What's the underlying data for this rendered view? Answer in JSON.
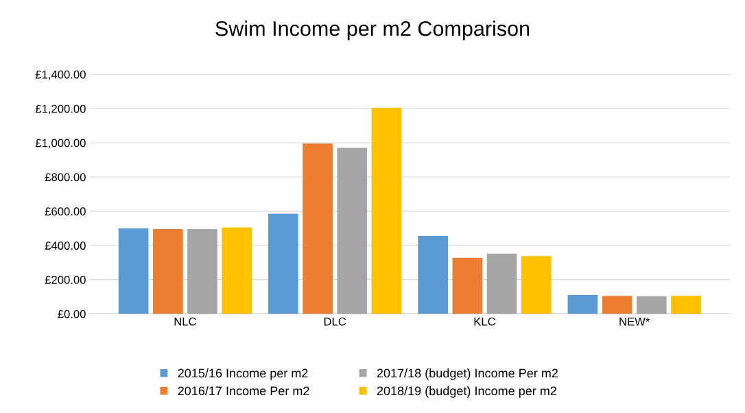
{
  "chart_data": {
    "type": "bar",
    "title": "Swim Income per m2 Comparison",
    "categories": [
      "NLC",
      "DLC",
      "KLC",
      "NEW*"
    ],
    "series": [
      {
        "name": "2015/16 Income per m2",
        "color": "#5b9bd5",
        "values": [
          500,
          585,
          455,
          110
        ]
      },
      {
        "name": "2016/17 Income Per m2",
        "color": "#ed7d31",
        "values": [
          495,
          995,
          328,
          105
        ]
      },
      {
        "name": "2017/18 (budget) Income Per m2",
        "color": "#a5a5a5",
        "values": [
          495,
          970,
          352,
          103
        ]
      },
      {
        "name": "2018/19 (budget) Income per m2",
        "color": "#ffc000",
        "values": [
          505,
          1205,
          338,
          105
        ]
      }
    ],
    "ylim": [
      0,
      1400
    ],
    "yticks": [
      {
        "value": 0,
        "label": "£0.00"
      },
      {
        "value": 200,
        "label": "£200.00"
      },
      {
        "value": 400,
        "label": "£400.00"
      },
      {
        "value": 600,
        "label": "£600.00"
      },
      {
        "value": 800,
        "label": "£800.00"
      },
      {
        "value": 1000,
        "label": "£1,000.00"
      },
      {
        "value": 1200,
        "label": "£1,200.00"
      },
      {
        "value": 1400,
        "label": "£1,400.00"
      }
    ],
    "grid": "y",
    "legend": "bottom"
  }
}
